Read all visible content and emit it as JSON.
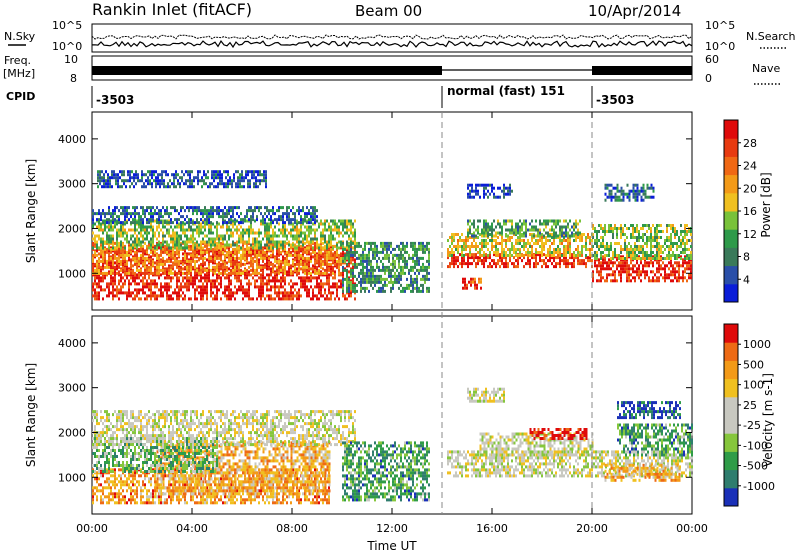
{
  "header": {
    "station": "Rankin Inlet (fitACF)",
    "beam": "Beam 00",
    "date": "10/Apr/2014"
  },
  "noise_panel": {
    "left_label": "N.Sky",
    "right_label": "N.Search",
    "left_ticks": [
      "10^5",
      "10^0"
    ],
    "right_ticks": [
      "10^5",
      "10^0"
    ]
  },
  "freq_panel": {
    "left_label_1": "Freq.",
    "left_label_2": "[MHz]",
    "left_ticks": [
      "10",
      "8"
    ],
    "right_label": "Nave",
    "right_ticks": [
      "60",
      "0"
    ]
  },
  "cpid_panel": {
    "label": "CPID",
    "segments": [
      "-3503",
      "normal (fast) 151",
      "-3503"
    ]
  },
  "x_axis": {
    "label": "Time UT",
    "ticks": [
      "00:00",
      "04:00",
      "08:00",
      "12:00",
      "16:00",
      "20:00",
      "00:00"
    ]
  },
  "chart_data": [
    {
      "type": "heatmap",
      "title": "",
      "xlabel": "Time UT",
      "ylabel": "Slant Range [km]",
      "xlim_hours": [
        0,
        24
      ],
      "ylim_km": [
        180,
        4600
      ],
      "yticks": [
        "1000",
        "2000",
        "3000",
        "4000"
      ],
      "colorbar": {
        "label": "Power [dB]",
        "ticks": [
          "28",
          "24",
          "20",
          "16",
          "12",
          "8",
          "4"
        ],
        "colors": [
          "#0a1dd8",
          "#2a4fa8",
          "#3a7a5a",
          "#2e9a4a",
          "#79c23a",
          "#f0c020",
          "#f39a18",
          "#f06814",
          "#e83a10",
          "#df0a0a"
        ]
      },
      "regions": [
        {
          "t0": 0.0,
          "t1": 10.5,
          "r0": 450,
          "r1": 1600,
          "level": 0.9
        },
        {
          "t0": 0.0,
          "t1": 10.0,
          "r0": 1000,
          "r1": 1700,
          "level": 0.7
        },
        {
          "t0": 0.0,
          "t1": 10.5,
          "r0": 1550,
          "r1": 2200,
          "level": 0.45
        },
        {
          "t0": 0.0,
          "t1": 9.0,
          "r0": 2100,
          "r1": 2500,
          "level": 0.2
        },
        {
          "t0": 10.0,
          "t1": 13.5,
          "r0": 600,
          "r1": 1700,
          "level": 0.3
        },
        {
          "t0": 14.2,
          "t1": 20.0,
          "r0": 1150,
          "r1": 1450,
          "level": 0.9
        },
        {
          "t0": 14.2,
          "t1": 20.0,
          "r0": 1400,
          "r1": 1900,
          "level": 0.55
        },
        {
          "t0": 15.0,
          "t1": 19.5,
          "r0": 1800,
          "r1": 2200,
          "level": 0.35
        },
        {
          "t0": 14.8,
          "t1": 15.6,
          "r0": 650,
          "r1": 900,
          "level": 0.85
        },
        {
          "t0": 20.0,
          "t1": 24.0,
          "r0": 800,
          "r1": 1400,
          "level": 0.9
        },
        {
          "t0": 20.0,
          "t1": 24.0,
          "r0": 1350,
          "r1": 2100,
          "level": 0.45
        },
        {
          "t0": 15.0,
          "t1": 16.8,
          "r0": 2700,
          "r1": 3000,
          "level": 0.1
        },
        {
          "t0": 20.5,
          "t1": 22.5,
          "r0": 2600,
          "r1": 3000,
          "level": 0.2
        },
        {
          "t0": 0.2,
          "t1": 7.0,
          "r0": 2900,
          "r1": 3300,
          "level": 0.15
        }
      ]
    },
    {
      "type": "heatmap",
      "title": "",
      "xlabel": "Time UT",
      "ylabel": "Slant Range [km]",
      "xlim_hours": [
        0,
        24
      ],
      "ylim_km": [
        180,
        4600
      ],
      "yticks": [
        "1000",
        "2000",
        "3000",
        "4000"
      ],
      "colorbar": {
        "label": "Velocity [m s-1]",
        "ticks": [
          "1000",
          "500",
          "100",
          "25",
          "-25",
          "-100",
          "-500",
          "-1000"
        ],
        "colors": [
          "#1a30b8",
          "#2f7d6e",
          "#2f9c48",
          "#86c63c",
          "#c8c8c0",
          "#c8c8c0",
          "#f0c020",
          "#f39a18",
          "#ee6a14",
          "#df0a0a"
        ]
      },
      "regions": [
        {
          "t0": 0.0,
          "t1": 9.5,
          "r0": 450,
          "r1": 1200,
          "level": 0.75
        },
        {
          "t0": 2.5,
          "t1": 9.5,
          "r0": 600,
          "r1": 1800,
          "level": 0.7
        },
        {
          "t0": 0.0,
          "t1": 5.0,
          "r0": 1100,
          "r1": 1900,
          "level": 0.3
        },
        {
          "t0": 0.0,
          "t1": 10.5,
          "r0": 1700,
          "r1": 2500,
          "level": 0.5
        },
        {
          "t0": 10.0,
          "t1": 13.5,
          "r0": 500,
          "r1": 1800,
          "level": 0.25
        },
        {
          "t0": 14.2,
          "t1": 24.0,
          "r0": 1000,
          "r1": 1600,
          "level": 0.5
        },
        {
          "t0": 15.5,
          "t1": 20.0,
          "r0": 1500,
          "r1": 2000,
          "level": 0.5
        },
        {
          "t0": 17.5,
          "t1": 19.8,
          "r0": 1850,
          "r1": 2100,
          "level": 0.98
        },
        {
          "t0": 21.0,
          "t1": 24.0,
          "r0": 1500,
          "r1": 2200,
          "level": 0.25
        },
        {
          "t0": 21.0,
          "t1": 23.5,
          "r0": 2300,
          "r1": 2700,
          "level": 0.08
        },
        {
          "t0": 15.0,
          "t1": 16.5,
          "r0": 2700,
          "r1": 3000,
          "level": 0.5
        },
        {
          "t0": 20.5,
          "t1": 23.5,
          "r0": 900,
          "r1": 1300,
          "level": 0.7
        }
      ]
    }
  ]
}
